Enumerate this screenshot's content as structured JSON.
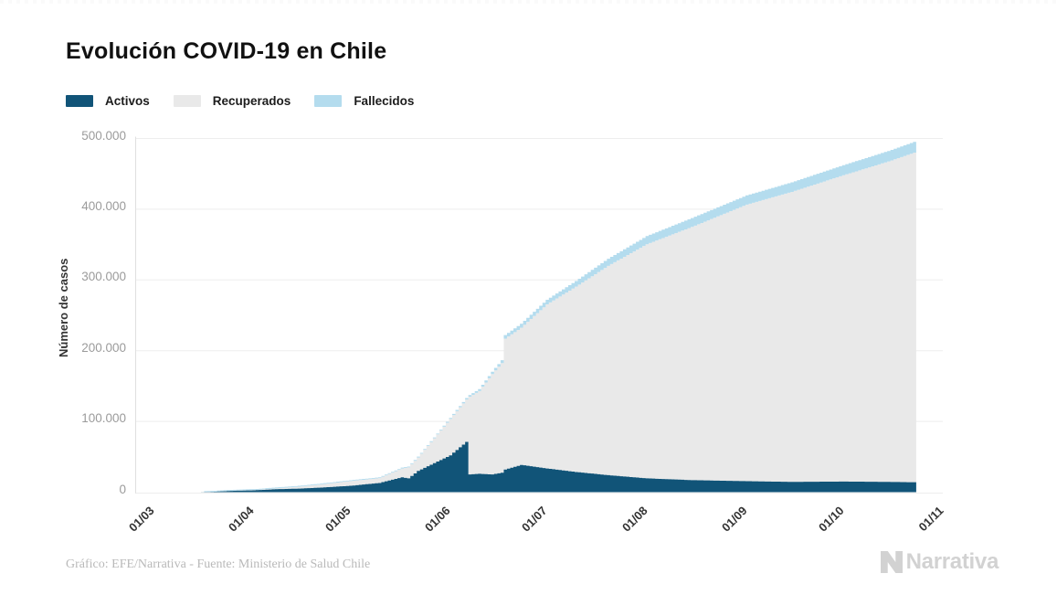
{
  "title": "Evolución COVID-19 en Chile",
  "legend": [
    {
      "label": "Activos",
      "color": "#115478"
    },
    {
      "label": "Recuperados",
      "color": "#e9e9e9"
    },
    {
      "label": "Fallecidos",
      "color": "#b4dcee"
    }
  ],
  "footer": {
    "source": "Gráfico: EFE/Narrativa - Fuente: Ministerio de Salud Chile",
    "brand": "Narrativa"
  },
  "colors": {
    "grid": "#ededed",
    "axis": "#e0e0e0",
    "y_tick_text": "#9b9b9b",
    "x_tick_text": "#333333",
    "title_text": "#111111",
    "source_text": "#b9b9b9",
    "brand_text": "#d2d2d2"
  },
  "chart_data": {
    "type": "area",
    "stacked": true,
    "title": "Evolución COVID-19 en Chile",
    "xlabel": "",
    "ylabel": "Número de casos",
    "ylim": [
      0,
      500000
    ],
    "grid": true,
    "legend_position": "top-left",
    "y_ticks": [
      {
        "value": 0,
        "label": "0"
      },
      {
        "value": 100000,
        "label": "100.000"
      },
      {
        "value": 200000,
        "label": "200.000"
      },
      {
        "value": 300000,
        "label": "300.000"
      },
      {
        "value": 400000,
        "label": "400.000"
      },
      {
        "value": 500000,
        "label": "500.000"
      }
    ],
    "x_ticks": [
      {
        "day": 0,
        "label": "01/03"
      },
      {
        "day": 31,
        "label": "01/04"
      },
      {
        "day": 61,
        "label": "01/05"
      },
      {
        "day": 92,
        "label": "01/06"
      },
      {
        "day": 122,
        "label": "01/07"
      },
      {
        "day": 153,
        "label": "01/08"
      },
      {
        "day": 184,
        "label": "01/09"
      },
      {
        "day": 214,
        "label": "01/10"
      },
      {
        "day": 245,
        "label": "01/11"
      }
    ],
    "series_order": [
      "activos",
      "recuperados",
      "fallecidos"
    ],
    "points": [
      {
        "day": 15,
        "date": "16/03",
        "activos": 100,
        "recuperados": 10,
        "fallecidos": 0
      },
      {
        "day": 19,
        "date": "20/03",
        "activos": 700,
        "recuperados": 100,
        "fallecidos": 20
      },
      {
        "day": 24,
        "date": "25/03",
        "activos": 1800,
        "recuperados": 300,
        "fallecidos": 50
      },
      {
        "day": 31,
        "date": "01/04",
        "activos": 2600,
        "recuperados": 500,
        "fallecidos": 100
      },
      {
        "day": 38,
        "date": "08/04",
        "activos": 4200,
        "recuperados": 1200,
        "fallecidos": 150
      },
      {
        "day": 45,
        "date": "15/04",
        "activos": 5000,
        "recuperados": 2800,
        "fallecidos": 200
      },
      {
        "day": 52,
        "date": "22/04",
        "activos": 6500,
        "recuperados": 4500,
        "fallecidos": 300
      },
      {
        "day": 61,
        "date": "01/05",
        "activos": 9000,
        "recuperados": 6700,
        "fallecidos": 350
      },
      {
        "day": 70,
        "date": "10/05",
        "activos": 13000,
        "recuperados": 6800,
        "fallecidos": 450
      },
      {
        "day": 77,
        "date": "17/05",
        "activos": 21000,
        "recuperados": 12500,
        "fallecidos": 550
      },
      {
        "day": 79,
        "date": "19/05",
        "activos": 19500,
        "recuperados": 15500,
        "fallecidos": 600
      },
      {
        "day": 82,
        "date": "22/05",
        "activos": 30000,
        "recuperados": 19000,
        "fallecidos": 650
      },
      {
        "day": 92,
        "date": "01/06",
        "activos": 52000,
        "recuperados": 51500,
        "fallecidos": 1500
      },
      {
        "day": 97,
        "date": "06/06",
        "activos": 71000,
        "recuperados": 60000,
        "fallecidos": 2000
      },
      {
        "day": 98,
        "date": "07/06",
        "activos": 25000,
        "recuperados": 110000,
        "fallecidos": 2300
      },
      {
        "day": 101,
        "date": "10/06",
        "activos": 26000,
        "recuperados": 117000,
        "fallecidos": 2600
      },
      {
        "day": 105,
        "date": "14/06",
        "activos": 25000,
        "recuperados": 142000,
        "fallecidos": 3200
      },
      {
        "day": 108,
        "date": "17/06",
        "activos": 27500,
        "recuperados": 155000,
        "fallecidos": 4000
      },
      {
        "day": 109,
        "date": "18/06",
        "activos": 32000,
        "recuperados": 185000,
        "fallecidos": 5000
      },
      {
        "day": 114,
        "date": "23/06",
        "activos": 38500,
        "recuperados": 194000,
        "fallecidos": 5500
      },
      {
        "day": 122,
        "date": "01/07",
        "activos": 33500,
        "recuperados": 232000,
        "fallecidos": 6500
      },
      {
        "day": 131,
        "date": "10/07",
        "activos": 28500,
        "recuperados": 262000,
        "fallecidos": 8000
      },
      {
        "day": 141,
        "date": "20/07",
        "activos": 24000,
        "recuperados": 296000,
        "fallecidos": 10000
      },
      {
        "day": 153,
        "date": "01/08",
        "activos": 19500,
        "recuperados": 331000,
        "fallecidos": 11500
      },
      {
        "day": 167,
        "date": "15/08",
        "activos": 17000,
        "recuperados": 358000,
        "fallecidos": 12500
      },
      {
        "day": 184,
        "date": "01/09",
        "activos": 15500,
        "recuperados": 391000,
        "fallecidos": 13000
      },
      {
        "day": 198,
        "date": "15/09",
        "activos": 14500,
        "recuperados": 410000,
        "fallecidos": 13500
      },
      {
        "day": 214,
        "date": "01/10",
        "activos": 15000,
        "recuperados": 433000,
        "fallecidos": 14200
      },
      {
        "day": 228,
        "date": "15/10",
        "activos": 14500,
        "recuperados": 453000,
        "fallecidos": 14800
      },
      {
        "day": 236,
        "date": "23/10",
        "activos": 14000,
        "recuperados": 466000,
        "fallecidos": 15200
      }
    ]
  }
}
